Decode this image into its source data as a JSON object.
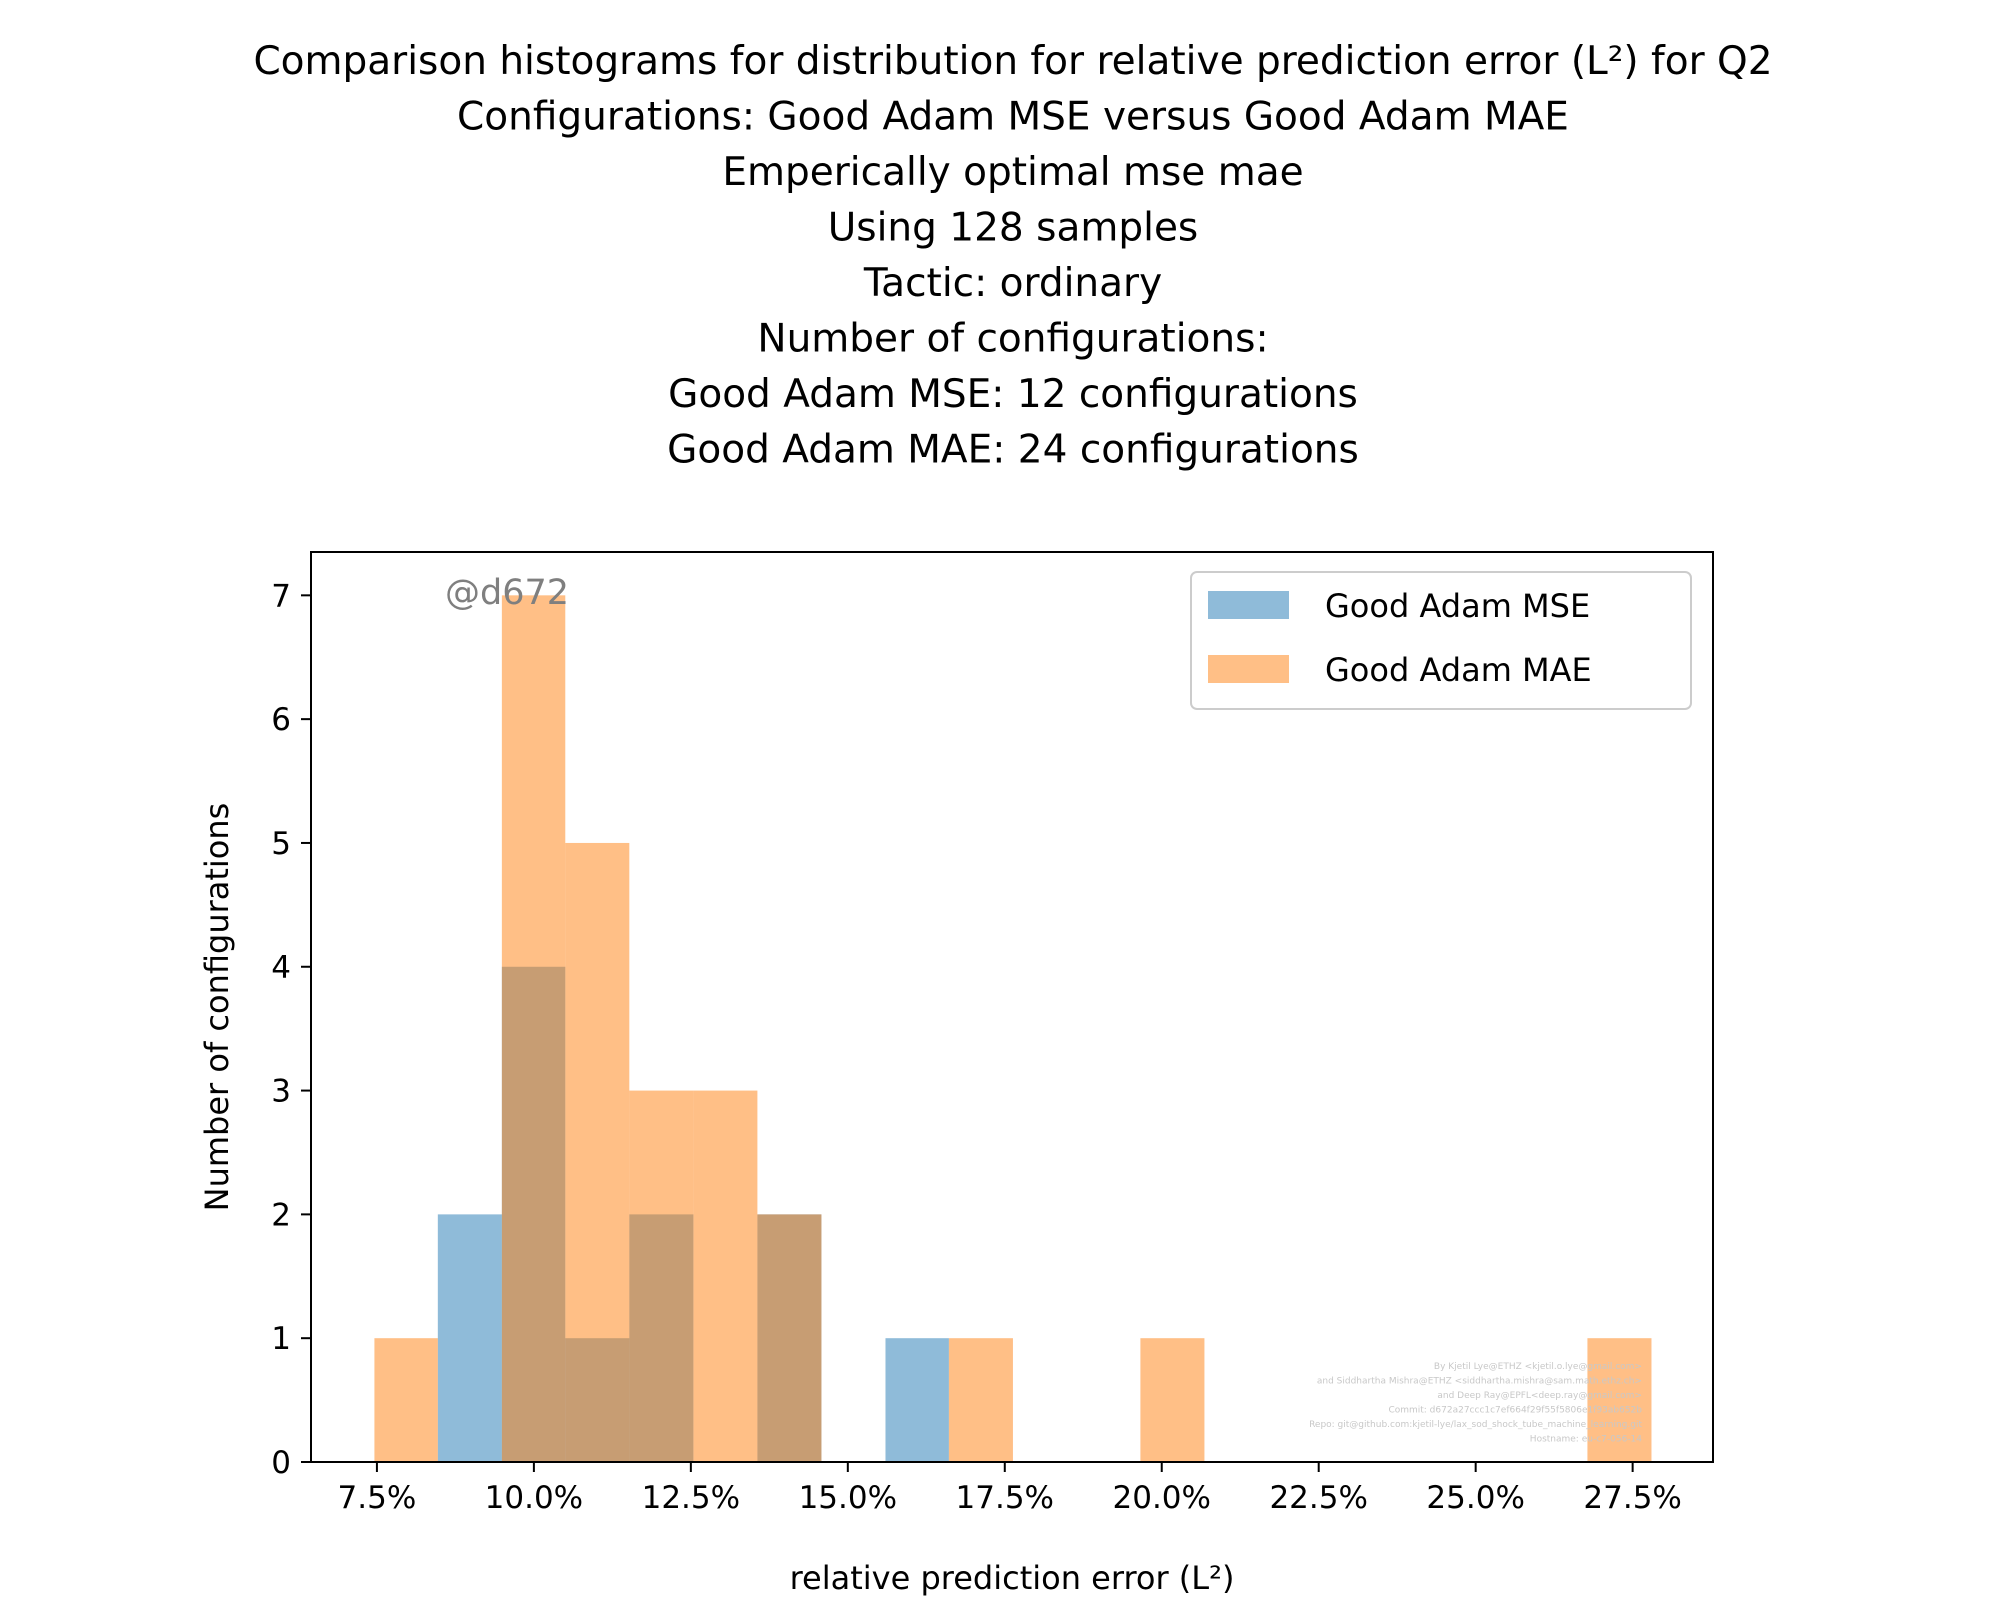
{
  "chart_data": {
    "type": "bar",
    "subtype": "histogram-overlay",
    "title_lines": [
      "Comparison histograms for distribution for relative prediction error (L²) for Q2",
      "Configurations: Good Adam MSE versus Good Adam MAE",
      "Emperically optimal mse mae",
      "Using 128 samples",
      "Tactic: ordinary",
      "Number of configurations:",
      "Good Adam MSE: 12 configurations",
      "Good Adam MAE: 24 configurations"
    ],
    "xlabel": "relative prediction error (L²)",
    "ylabel": "Number of configurations",
    "xlim": [
      0.0645,
      0.2878
    ],
    "ylim": [
      0,
      7.35
    ],
    "xticks": [
      0.075,
      0.1,
      0.125,
      0.15,
      0.175,
      0.2,
      0.225,
      0.25,
      0.275
    ],
    "xtick_labels": [
      "7.5%",
      "10.0%",
      "12.5%",
      "15.0%",
      "17.5%",
      "20.0%",
      "22.5%",
      "25.0%",
      "27.5%"
    ],
    "yticks": [
      0,
      1,
      2,
      3,
      4,
      5,
      6,
      7
    ],
    "ytick_labels": [
      "0",
      "1",
      "2",
      "3",
      "4",
      "5",
      "6",
      "7"
    ],
    "grid": false,
    "legend_placement": "top-right",
    "series": [
      {
        "name": "Good Adam MSE",
        "color": "#1f77b4",
        "opacity": 0.5,
        "bins": [
          {
            "x0": 0.0847,
            "x1": 0.0949,
            "count": 2
          },
          {
            "x0": 0.0949,
            "x1": 0.105,
            "count": 4
          },
          {
            "x0": 0.105,
            "x1": 0.1152,
            "count": 1
          },
          {
            "x0": 0.1152,
            "x1": 0.1254,
            "count": 2
          },
          {
            "x0": 0.1356,
            "x1": 0.1458,
            "count": 2
          },
          {
            "x0": 0.156,
            "x1": 0.1661,
            "count": 1
          }
        ]
      },
      {
        "name": "Good Adam MAE",
        "color": "#ff7f0e",
        "opacity": 0.5,
        "bins": [
          {
            "x0": 0.0746,
            "x1": 0.0847,
            "count": 1
          },
          {
            "x0": 0.0949,
            "x1": 0.105,
            "count": 7
          },
          {
            "x0": 0.105,
            "x1": 0.1152,
            "count": 5
          },
          {
            "x0": 0.1152,
            "x1": 0.1254,
            "count": 3
          },
          {
            "x0": 0.1254,
            "x1": 0.1356,
            "count": 3
          },
          {
            "x0": 0.1356,
            "x1": 0.1458,
            "count": 2
          },
          {
            "x0": 0.1661,
            "x1": 0.1763,
            "count": 1
          },
          {
            "x0": 0.1966,
            "x1": 0.2068,
            "count": 1
          },
          {
            "x0": 0.2678,
            "x1": 0.278,
            "count": 1
          }
        ]
      }
    ],
    "annotations": {
      "commit_tag": "@d672",
      "credits": [
        "By Kjetil Lye@ETHZ <kjetil.o.lye@gmail.com>",
        "and Siddhartha Mishra@ETHZ <siddhartha.mishra@sam.math.ethz.ch>",
        "and Deep Ray@EPFL<deep.ray@gmail.com>",
        "Commit: d672a27ccc1c7ef664f29f55f5806e1f93ab652b",
        "Repo: git@github.com:kjetil-lye/lax_sod_shock_tube_machine_learning.git",
        "Hostname: eu-c7-056-14"
      ]
    }
  }
}
